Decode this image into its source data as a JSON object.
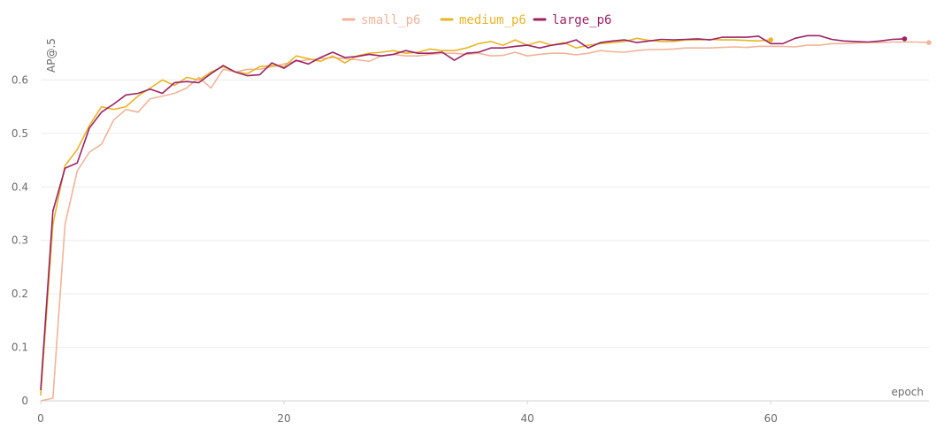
{
  "chart_data": {
    "type": "line",
    "xlabel": "epoch",
    "ylabel": "AP@.5",
    "xlim": [
      0,
      73
    ],
    "ylim": [
      0,
      0.7
    ],
    "x_ticks": [
      0,
      20,
      40,
      60
    ],
    "y_ticks": [
      0,
      0.1,
      0.2,
      0.3,
      0.4,
      0.5,
      0.6
    ],
    "y_tick_labels": [
      "0",
      "0.1",
      "0.2",
      "0.3",
      "0.4",
      "0.5",
      "0.6"
    ],
    "x_tick_labels": [
      "0",
      "20",
      "40",
      "60"
    ],
    "grid": true,
    "legend_position": "top-center",
    "series": [
      {
        "name": "small_p6",
        "color": "#f0b49a",
        "values": [
          0.0,
          0.005,
          0.33,
          0.43,
          0.465,
          0.48,
          0.525,
          0.545,
          0.54,
          0.565,
          0.57,
          0.575,
          0.585,
          0.605,
          0.585,
          0.62,
          0.615,
          0.62,
          0.62,
          0.625,
          0.63,
          0.635,
          0.638,
          0.64,
          0.642,
          0.64,
          0.638,
          0.635,
          0.645,
          0.648,
          0.645,
          0.645,
          0.648,
          0.65,
          0.65,
          0.648,
          0.65,
          0.645,
          0.646,
          0.652,
          0.645,
          0.648,
          0.65,
          0.65,
          0.647,
          0.65,
          0.655,
          0.653,
          0.652,
          0.655,
          0.657,
          0.657,
          0.658,
          0.66,
          0.66,
          0.66,
          0.661,
          0.662,
          0.661,
          0.663,
          0.663,
          0.663,
          0.662,
          0.665,
          0.665,
          0.668,
          0.668,
          0.669,
          0.67,
          0.67,
          0.671,
          0.671,
          0.671,
          0.67
        ]
      },
      {
        "name": "medium_p6",
        "color": "#e8b526",
        "values": [
          0.01,
          0.33,
          0.44,
          0.47,
          0.515,
          0.55,
          0.545,
          0.55,
          0.57,
          0.585,
          0.6,
          0.59,
          0.605,
          0.6,
          0.615,
          0.625,
          0.615,
          0.612,
          0.625,
          0.627,
          0.625,
          0.645,
          0.64,
          0.635,
          0.645,
          0.632,
          0.645,
          0.65,
          0.652,
          0.655,
          0.65,
          0.652,
          0.658,
          0.655,
          0.655,
          0.66,
          0.668,
          0.672,
          0.665,
          0.675,
          0.665,
          0.672,
          0.665,
          0.67,
          0.66,
          0.665,
          0.668,
          0.67,
          0.672,
          0.678,
          0.674,
          0.672,
          0.672,
          0.675,
          0.675,
          0.676,
          0.675,
          0.675,
          0.674,
          0.673,
          0.675
        ]
      },
      {
        "name": "large_p6",
        "color": "#9a2366",
        "values": [
          0.02,
          0.355,
          0.435,
          0.445,
          0.51,
          0.54,
          0.555,
          0.572,
          0.575,
          0.583,
          0.575,
          0.595,
          0.597,
          0.595,
          0.612,
          0.627,
          0.615,
          0.608,
          0.61,
          0.632,
          0.622,
          0.637,
          0.63,
          0.642,
          0.652,
          0.642,
          0.644,
          0.648,
          0.645,
          0.648,
          0.655,
          0.65,
          0.65,
          0.652,
          0.637,
          0.65,
          0.652,
          0.66,
          0.66,
          0.663,
          0.665,
          0.66,
          0.665,
          0.668,
          0.675,
          0.66,
          0.67,
          0.673,
          0.675,
          0.67,
          0.673,
          0.676,
          0.675,
          0.676,
          0.677,
          0.675,
          0.68,
          0.68,
          0.68,
          0.682,
          0.668,
          0.668,
          0.678,
          0.683,
          0.683,
          0.676,
          0.673,
          0.672,
          0.671,
          0.673,
          0.676,
          0.677
        ]
      }
    ]
  }
}
